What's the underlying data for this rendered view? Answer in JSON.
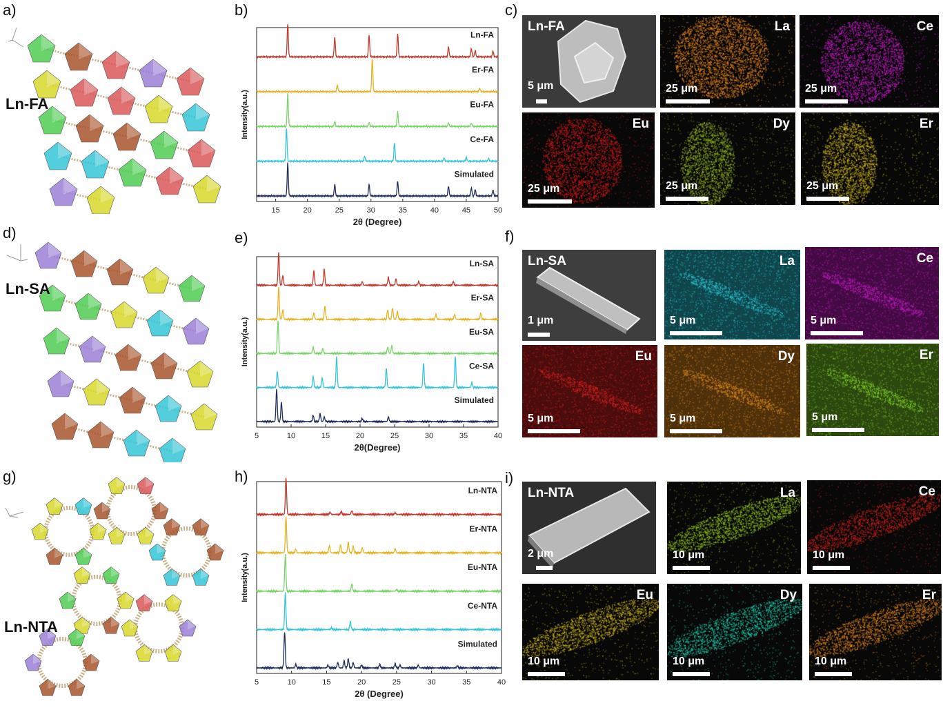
{
  "panels": {
    "a": "a)",
    "b": "b)",
    "c": "c)",
    "d": "d)",
    "e": "e)",
    "f": "f)",
    "g": "g)",
    "h": "h)",
    "i": "i)"
  },
  "structures": [
    {
      "label": "Ln-FA"
    },
    {
      "label": "Ln-SA"
    },
    {
      "label": "Ln-NTA"
    }
  ],
  "chart_data": [
    {
      "type": "line",
      "panel": "b)",
      "xlabel": "2θ (Degree)",
      "ylabel": "Intensity(a.u.)",
      "xlim": [
        12,
        50
      ],
      "xticks": [
        15,
        20,
        25,
        30,
        35,
        40,
        45,
        50
      ],
      "series": [
        {
          "name": "Ln-FA",
          "color": "#c0392b",
          "peaks": [
            [
              16.9,
              1.0
            ],
            [
              24.3,
              0.6
            ],
            [
              29.7,
              0.65
            ],
            [
              34.2,
              0.7
            ],
            [
              42.2,
              0.3
            ],
            [
              45.8,
              0.25
            ],
            [
              46.4,
              0.2
            ],
            [
              49.2,
              0.18
            ]
          ]
        },
        {
          "name": "Er-FA",
          "color": "#e6b422",
          "peaks": [
            [
              24.7,
              0.2
            ],
            [
              30.2,
              1.0
            ],
            [
              47.1,
              0.1
            ]
          ]
        },
        {
          "name": "Eu-FA",
          "color": "#7bd36b",
          "peaks": [
            [
              16.9,
              1.0
            ],
            [
              24.3,
              0.15
            ],
            [
              29.7,
              0.12
            ],
            [
              34.2,
              0.45
            ],
            [
              42.2,
              0.1
            ],
            [
              45.8,
              0.1
            ]
          ]
        },
        {
          "name": "Ce-FA",
          "color": "#36c5d8",
          "peaks": [
            [
              16.7,
              1.0
            ],
            [
              29.0,
              0.15
            ],
            [
              33.7,
              0.55
            ],
            [
              41.5,
              0.1
            ],
            [
              45.0,
              0.12
            ],
            [
              48.5,
              0.08
            ]
          ]
        },
        {
          "name": "Simulated",
          "color": "#1f2d5a",
          "peaks": [
            [
              16.9,
              1.0
            ],
            [
              24.3,
              0.35
            ],
            [
              29.7,
              0.35
            ],
            [
              34.2,
              0.45
            ],
            [
              42.2,
              0.3
            ],
            [
              45.8,
              0.25
            ],
            [
              46.4,
              0.2
            ],
            [
              49.2,
              0.18
            ]
          ]
        }
      ]
    },
    {
      "type": "line",
      "panel": "e)",
      "xlabel": "2θ(Degree)",
      "ylabel": "Intensity(a.u.)",
      "xlim": [
        5,
        40
      ],
      "xticks": [
        5,
        10,
        15,
        20,
        25,
        30,
        35,
        40
      ],
      "series": [
        {
          "name": "Ln-SA",
          "color": "#c0392b",
          "peaks": [
            [
              8.2,
              1.0
            ],
            [
              8.8,
              0.3
            ],
            [
              13.3,
              0.45
            ],
            [
              14.8,
              0.5
            ],
            [
              20.3,
              0.12
            ],
            [
              24.1,
              0.25
            ],
            [
              25.2,
              0.2
            ],
            [
              28.5,
              0.12
            ],
            [
              33.5,
              0.12
            ]
          ]
        },
        {
          "name": "Er-SA",
          "color": "#e6b422",
          "peaks": [
            [
              8.2,
              1.0
            ],
            [
              8.8,
              0.3
            ],
            [
              13.3,
              0.2
            ],
            [
              14.9,
              0.4
            ],
            [
              24.0,
              0.3
            ],
            [
              24.7,
              0.35
            ],
            [
              25.4,
              0.25
            ],
            [
              31.0,
              0.15
            ],
            [
              33.7,
              0.15
            ],
            [
              37.5,
              0.2
            ]
          ]
        },
        {
          "name": "Eu-SA",
          "color": "#7bd36b",
          "peaks": [
            [
              8.1,
              1.0
            ],
            [
              13.2,
              0.2
            ],
            [
              14.6,
              0.15
            ],
            [
              24.0,
              0.2
            ],
            [
              24.6,
              0.25
            ]
          ]
        },
        {
          "name": "Ce-SA",
          "color": "#36c5d8",
          "peaks": [
            [
              8.0,
              0.5
            ],
            [
              13.2,
              0.35
            ],
            [
              14.5,
              0.3
            ],
            [
              16.6,
              0.95
            ],
            [
              23.8,
              0.6
            ],
            [
              29.2,
              0.75
            ],
            [
              33.8,
              0.95
            ],
            [
              36.2,
              0.15
            ]
          ]
        },
        {
          "name": "Simulated",
          "color": "#1f2d5a",
          "peaks": [
            [
              7.9,
              1.0
            ],
            [
              8.6,
              0.6
            ],
            [
              13.2,
              0.2
            ],
            [
              14.2,
              0.25
            ],
            [
              14.8,
              0.15
            ],
            [
              20.3,
              0.1
            ],
            [
              24.1,
              0.15
            ]
          ]
        }
      ]
    },
    {
      "type": "line",
      "panel": "h)",
      "xlabel": "2θ (Degree)",
      "ylabel": "Intensity(a.u.)",
      "xlim": [
        5,
        40
      ],
      "xticks": [
        5,
        10,
        15,
        20,
        25,
        30,
        35,
        40
      ],
      "series": [
        {
          "name": "Ln-NTA",
          "color": "#c0392b",
          "peaks": [
            [
              9.2,
              1.0
            ],
            [
              15.5,
              0.06
            ],
            [
              17.1,
              0.08
            ],
            [
              18.6,
              0.1
            ],
            [
              24.8,
              0.05
            ]
          ]
        },
        {
          "name": "Er-NTA",
          "color": "#e6b422",
          "peaks": [
            [
              9.2,
              1.0
            ],
            [
              10.6,
              0.1
            ],
            [
              15.4,
              0.2
            ],
            [
              17.0,
              0.22
            ],
            [
              18.1,
              0.3
            ],
            [
              18.8,
              0.18
            ],
            [
              20.1,
              0.15
            ],
            [
              24.8,
              0.12
            ]
          ]
        },
        {
          "name": "Eu-NTA",
          "color": "#7bd36b",
          "peaks": [
            [
              9.1,
              1.0
            ],
            [
              18.6,
              0.18
            ],
            [
              25.0,
              0.05
            ]
          ]
        },
        {
          "name": "Ce-NTA",
          "color": "#36c5d8",
          "peaks": [
            [
              9.1,
              1.0
            ],
            [
              15.7,
              0.05
            ],
            [
              18.4,
              0.22
            ]
          ]
        },
        {
          "name": "Simulated",
          "color": "#1f2d5a",
          "peaks": [
            [
              9.0,
              1.0
            ],
            [
              10.6,
              0.1
            ],
            [
              15.2,
              0.08
            ],
            [
              16.6,
              0.15
            ],
            [
              17.5,
              0.2
            ],
            [
              18.1,
              0.25
            ],
            [
              18.8,
              0.15
            ],
            [
              20.0,
              0.08
            ],
            [
              22.6,
              0.1
            ],
            [
              24.8,
              0.12
            ],
            [
              25.5,
              0.08
            ],
            [
              28.1,
              0.08
            ],
            [
              33.7,
              0.06
            ]
          ]
        }
      ]
    }
  ],
  "micrographs": {
    "c": {
      "sem": {
        "title": "Ln-FA",
        "scale": "5 μm"
      },
      "maps": [
        {
          "element": "La",
          "scale": "25 μm",
          "color": "#e0821e"
        },
        {
          "element": "Ce",
          "scale": "25 μm",
          "color": "#c21cc2"
        },
        {
          "element": "Eu",
          "scale": "25 μm",
          "color": "#c21a1a"
        },
        {
          "element": "Dy",
          "scale": "25 μm",
          "color": "#8fb11e"
        },
        {
          "element": "Er",
          "scale": "25 μm",
          "color": "#c9b21a"
        }
      ]
    },
    "f": {
      "sem": {
        "title": "Ln-SA",
        "scale": "1 μm"
      },
      "maps": [
        {
          "element": "La",
          "scale": "5 μm",
          "color": "#2cc6d6"
        },
        {
          "element": "Ce",
          "scale": "5 μm",
          "color": "#c21cc2"
        },
        {
          "element": "Eu",
          "scale": "5 μm",
          "color": "#d22222"
        },
        {
          "element": "Dy",
          "scale": "5 μm",
          "color": "#e08a1e"
        },
        {
          "element": "Er",
          "scale": "5 μm",
          "color": "#7fcf2a"
        }
      ]
    },
    "i": {
      "sem": {
        "title": "Ln-NTA",
        "scale": "2 μm"
      },
      "maps": [
        {
          "element": "La",
          "scale": "10 μm",
          "color": "#8fc21e"
        },
        {
          "element": "Ce",
          "scale": "10 μm",
          "color": "#c2221a"
        },
        {
          "element": "Eu",
          "scale": "10 μm",
          "color": "#c9b21a"
        },
        {
          "element": "Dy",
          "scale": "10 μm",
          "color": "#1ec6a8"
        },
        {
          "element": "Er",
          "scale": "10 μm",
          "color": "#d8821e"
        }
      ]
    }
  }
}
